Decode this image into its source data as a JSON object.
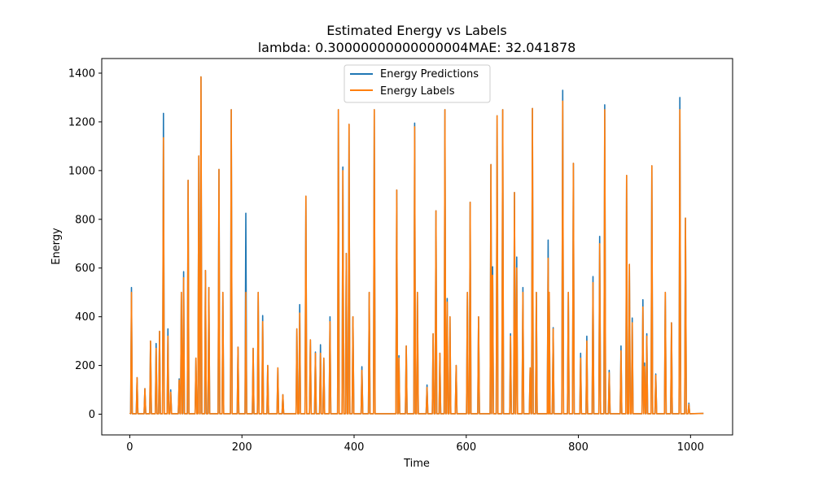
{
  "chart_data": {
    "type": "line",
    "title_line1": "Estimated Energy vs Labels",
    "title_line2": "lambda: 0.30000000000000004MAE: 32.041878",
    "xlabel": "Time",
    "ylabel": "Energy",
    "xlim": [
      -50,
      1075
    ],
    "ylim": [
      -85,
      1460
    ],
    "x_ticks": [
      0,
      200,
      400,
      600,
      800,
      1000
    ],
    "y_ticks": [
      0,
      200,
      400,
      600,
      800,
      1000,
      1200,
      1400
    ],
    "legend_position": "upper center",
    "series": [
      {
        "name": "Energy Predictions",
        "color": "#1f77b4",
        "peaks": [
          [
            3,
            520
          ],
          [
            13,
            150
          ],
          [
            27,
            105
          ],
          [
            37,
            300
          ],
          [
            47,
            290
          ],
          [
            53,
            340
          ],
          [
            60,
            1235
          ],
          [
            68,
            350
          ],
          [
            73,
            100
          ],
          [
            88,
            145
          ],
          [
            92,
            500
          ],
          [
            96,
            585
          ],
          [
            104,
            960
          ],
          [
            118,
            230
          ],
          [
            123,
            1060
          ],
          [
            127,
            1385
          ],
          [
            135,
            590
          ],
          [
            141,
            520
          ],
          [
            159,
            1005
          ],
          [
            166,
            500
          ],
          [
            181,
            1250
          ],
          [
            193,
            275
          ],
          [
            207,
            825
          ],
          [
            220,
            270
          ],
          [
            229,
            500
          ],
          [
            237,
            405
          ],
          [
            246,
            200
          ],
          [
            264,
            190
          ],
          [
            273,
            80
          ],
          [
            298,
            350
          ],
          [
            303,
            450
          ],
          [
            314,
            895
          ],
          [
            322,
            305
          ],
          [
            331,
            255
          ],
          [
            340,
            285
          ],
          [
            346,
            230
          ],
          [
            357,
            400
          ],
          [
            372,
            1250
          ],
          [
            380,
            1015
          ],
          [
            386,
            660
          ],
          [
            391,
            1190
          ],
          [
            398,
            400
          ],
          [
            414,
            195
          ],
          [
            427,
            500
          ],
          [
            436,
            1250
          ],
          [
            476,
            920
          ],
          [
            480,
            240
          ],
          [
            493,
            280
          ],
          [
            508,
            1195
          ],
          [
            513,
            500
          ],
          [
            530,
            120
          ],
          [
            541,
            330
          ],
          [
            546,
            835
          ],
          [
            553,
            250
          ],
          [
            562,
            1250
          ],
          [
            566,
            475
          ],
          [
            571,
            400
          ],
          [
            582,
            200
          ],
          [
            602,
            500
          ],
          [
            607,
            870
          ],
          [
            622,
            400
          ],
          [
            644,
            1025
          ],
          [
            647,
            605
          ],
          [
            655,
            1225
          ],
          [
            665,
            1250
          ],
          [
            679,
            330
          ],
          [
            686,
            910
          ],
          [
            690,
            645
          ],
          [
            701,
            520
          ],
          [
            714,
            190
          ],
          [
            718,
            1255
          ],
          [
            725,
            500
          ],
          [
            746,
            715
          ],
          [
            748,
            500
          ],
          [
            755,
            355
          ],
          [
            772,
            1330
          ],
          [
            782,
            500
          ],
          [
            791,
            1030
          ],
          [
            804,
            250
          ],
          [
            815,
            320
          ],
          [
            826,
            565
          ],
          [
            838,
            730
          ],
          [
            847,
            1270
          ],
          [
            855,
            180
          ],
          [
            876,
            280
          ],
          [
            886,
            980
          ],
          [
            891,
            615
          ],
          [
            896,
            395
          ],
          [
            915,
            470
          ],
          [
            918,
            210
          ],
          [
            922,
            330
          ],
          [
            931,
            1020
          ],
          [
            938,
            165
          ],
          [
            955,
            500
          ],
          [
            966,
            375
          ],
          [
            981,
            1300
          ],
          [
            991,
            805
          ],
          [
            997,
            45
          ]
        ]
      },
      {
        "name": "Energy Labels",
        "color": "#ff7f0e",
        "peaks": [
          [
            3,
            500
          ],
          [
            13,
            150
          ],
          [
            27,
            105
          ],
          [
            37,
            300
          ],
          [
            47,
            270
          ],
          [
            53,
            340
          ],
          [
            60,
            1135
          ],
          [
            68,
            320
          ],
          [
            73,
            90
          ],
          [
            88,
            140
          ],
          [
            92,
            500
          ],
          [
            96,
            560
          ],
          [
            104,
            960
          ],
          [
            118,
            230
          ],
          [
            123,
            1060
          ],
          [
            127,
            1385
          ],
          [
            135,
            590
          ],
          [
            141,
            520
          ],
          [
            159,
            1005
          ],
          [
            166,
            500
          ],
          [
            181,
            1250
          ],
          [
            193,
            275
          ],
          [
            207,
            500
          ],
          [
            220,
            270
          ],
          [
            229,
            500
          ],
          [
            237,
            380
          ],
          [
            246,
            200
          ],
          [
            264,
            190
          ],
          [
            273,
            80
          ],
          [
            298,
            350
          ],
          [
            303,
            415
          ],
          [
            314,
            895
          ],
          [
            322,
            305
          ],
          [
            331,
            250
          ],
          [
            340,
            250
          ],
          [
            346,
            230
          ],
          [
            357,
            380
          ],
          [
            372,
            1250
          ],
          [
            380,
            1000
          ],
          [
            386,
            660
          ],
          [
            391,
            1190
          ],
          [
            398,
            400
          ],
          [
            414,
            180
          ],
          [
            427,
            500
          ],
          [
            436,
            1250
          ],
          [
            476,
            920
          ],
          [
            480,
            230
          ],
          [
            493,
            280
          ],
          [
            508,
            1180
          ],
          [
            513,
            500
          ],
          [
            530,
            110
          ],
          [
            541,
            330
          ],
          [
            546,
            835
          ],
          [
            553,
            250
          ],
          [
            562,
            1250
          ],
          [
            566,
            460
          ],
          [
            571,
            400
          ],
          [
            582,
            200
          ],
          [
            602,
            500
          ],
          [
            607,
            870
          ],
          [
            622,
            400
          ],
          [
            644,
            1025
          ],
          [
            647,
            570
          ],
          [
            655,
            1225
          ],
          [
            665,
            1250
          ],
          [
            679,
            320
          ],
          [
            686,
            910
          ],
          [
            690,
            600
          ],
          [
            701,
            500
          ],
          [
            714,
            190
          ],
          [
            718,
            1255
          ],
          [
            725,
            500
          ],
          [
            746,
            640
          ],
          [
            748,
            500
          ],
          [
            755,
            350
          ],
          [
            772,
            1285
          ],
          [
            782,
            500
          ],
          [
            791,
            1030
          ],
          [
            804,
            230
          ],
          [
            815,
            300
          ],
          [
            826,
            540
          ],
          [
            838,
            700
          ],
          [
            847,
            1250
          ],
          [
            855,
            170
          ],
          [
            876,
            260
          ],
          [
            886,
            980
          ],
          [
            891,
            615
          ],
          [
            896,
            375
          ],
          [
            915,
            440
          ],
          [
            918,
            195
          ],
          [
            922,
            320
          ],
          [
            931,
            1020
          ],
          [
            938,
            160
          ],
          [
            955,
            500
          ],
          [
            966,
            375
          ],
          [
            981,
            1250
          ],
          [
            991,
            805
          ],
          [
            997,
            40
          ]
        ]
      }
    ]
  }
}
